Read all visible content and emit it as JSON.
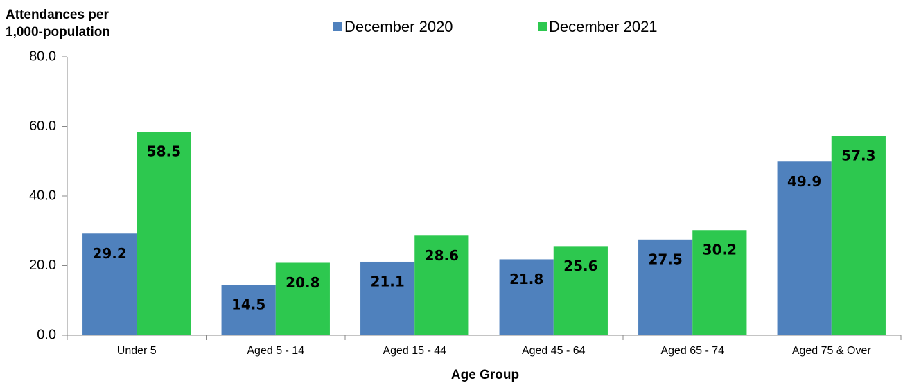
{
  "chart_data": {
    "type": "bar",
    "ylabel": [
      "Attendances per",
      "1,000-population"
    ],
    "xlabel": "Age Group",
    "categories": [
      "Under 5",
      "Aged 5 - 14",
      "Aged 15 - 44",
      "Aged 45 - 64",
      "Aged 65 - 74",
      "Aged 75 & Over"
    ],
    "series": [
      {
        "name": "December 2020",
        "color": "#4f81bd",
        "values": [
          29.2,
          14.5,
          21.1,
          21.8,
          27.5,
          49.9
        ]
      },
      {
        "name": "December 2021",
        "color": "#2dc84f",
        "values": [
          58.5,
          20.8,
          28.6,
          25.6,
          30.2,
          57.3
        ]
      }
    ],
    "ylim": [
      0,
      80
    ],
    "yticks": [
      {
        "value": 0,
        "label": "0.0"
      },
      {
        "value": 20,
        "label": "20.0"
      },
      {
        "value": 40,
        "label": "40.0"
      },
      {
        "value": 60,
        "label": "60.0"
      },
      {
        "value": 80,
        "label": "80.0"
      }
    ],
    "grid": false,
    "legend": "top"
  }
}
